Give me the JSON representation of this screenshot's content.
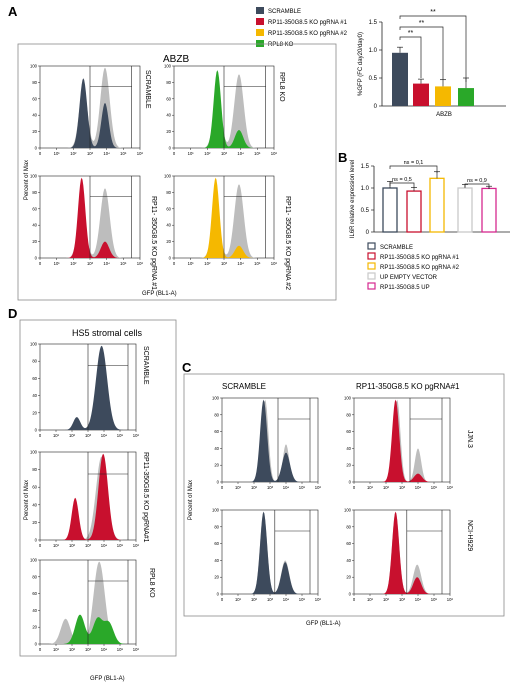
{
  "colors": {
    "scramble": "#3d4a5c",
    "rp11_1": "#c8102e",
    "rp11_2": "#f5b800",
    "rpl8": "#2aa829",
    "empty": "#c9c9c9",
    "up": "#d5288f",
    "gray_fill": "#bdbdbd",
    "frame_gray": "#8a8a8a"
  },
  "panel_letters": {
    "a": "A",
    "b": "B",
    "c": "C",
    "d": "D"
  },
  "legend": {
    "scramble": "SCRAMBLE",
    "rp11_1": "RP11-350G8.5 KO pgRNA #1",
    "rp11_2": "RP11-350G8.5 KO pgRNA #2",
    "rpl8": "RPL8 KO"
  },
  "legend_b": {
    "scramble": "SCRAMBLE",
    "rp11_1": "RP11-350G8.5 KO pgRNA #1",
    "rp11_2": "RP11-350G8.5 KO pgRNA #2",
    "empty": "UP EMPTY VECTOR",
    "up": "RP11-350G8.5 UP"
  },
  "panel_a": {
    "title": "ABZB",
    "ylabel": "Percent of Max",
    "xlabel": "GFP (BL1-A)",
    "hist_labels": {
      "scramble": "SCRAMBLE",
      "rpl8": "RPL8 KO",
      "rp11_1": "RP11- 350G8.5 KO pgRNA #1",
      "rp11_2": "RP11- 350G8.5 KO pgRNA #2"
    }
  },
  "panel_d": {
    "title": "HS5 stromal cells",
    "ylabel": "Percent of Max",
    "xlabel": "GFP (BL1-A)",
    "hist_labels": {
      "scramble": "SCRAMBLE",
      "rp11": "RP11-350G8.5 KO pgRNA#1",
      "rpl8": "RPL8 KO"
    }
  },
  "panel_c": {
    "col_scramble": "SCRAMBLE",
    "col_rp11": "RP11-350G8.5 KO pgRNA#1",
    "row_jjn3": "JJN.3",
    "row_nci": "NCI-H929",
    "ylabel": "Percent of Max",
    "xlabel": "GFP (BL1-A)"
  },
  "hist_axes": {
    "y_ticks": [
      "0",
      "20",
      "40",
      "60",
      "80",
      "100"
    ],
    "x_ticks": [
      "0",
      "10¹",
      "10²",
      "10³",
      "10⁴",
      "10⁵",
      "10⁶"
    ],
    "x_tick_levels": [
      0,
      1,
      2,
      3,
      4,
      5,
      6
    ],
    "y_tick_values": [
      0,
      20,
      40,
      60,
      80,
      100
    ]
  },
  "chart_data": [
    {
      "type": "bar",
      "panel": "A",
      "xlabel": "ABZB",
      "ylabel": "%GFP (FC day20/day0)",
      "ylim": [
        0,
        1.5
      ],
      "yticks": [
        0,
        0.5,
        1.0,
        1.5
      ],
      "ytick_labels": [
        "0",
        "0.5",
        "1.0",
        "1.5"
      ],
      "categories": [
        "SCRAMBLE",
        "RP11-350G8.5 KO pgRNA #1",
        "RP11-350G8.5 KO pgRNA #2",
        "RPL8 KO"
      ],
      "values": [
        0.95,
        0.4,
        0.35,
        0.32
      ],
      "errors": [
        0.1,
        0.08,
        0.12,
        0.18
      ],
      "significance": [
        {
          "from": 0,
          "to": 1,
          "label": "**"
        },
        {
          "from": 0,
          "to": 2,
          "label": "**"
        },
        {
          "from": 0,
          "to": 3,
          "label": "**"
        }
      ],
      "grid": false,
      "legend": "top-left"
    },
    {
      "type": "bar",
      "panel": "B",
      "xlabel": "",
      "ylabel": "IL6R relative expression level",
      "ylim": [
        0,
        1.5
      ],
      "yticks": [
        0,
        0.5,
        1.0,
        1.5
      ],
      "ytick_labels": [
        "0",
        "0.5",
        "1.0",
        "1.5"
      ],
      "categories": [
        "SCRAMBLE",
        "RP11-350G8.5 KO pgRNA #1",
        "RP11-350G8.5 KO pgRNA #2",
        "UP EMPTY VECTOR",
        "RP11-350G8.5 UP"
      ],
      "values": [
        1.0,
        0.93,
        1.22,
        1.0,
        0.99
      ],
      "errors": [
        0.15,
        0.08,
        0.15,
        0.08,
        0.05
      ],
      "significance": [
        {
          "from": 0,
          "to": 1,
          "label": "ns = 0,5"
        },
        {
          "from": 0,
          "to": 2,
          "label": "ns = 0,1"
        },
        {
          "from": 3,
          "to": 4,
          "label": "ns = 0,9"
        }
      ],
      "grid": false,
      "legend": "bottom"
    }
  ]
}
